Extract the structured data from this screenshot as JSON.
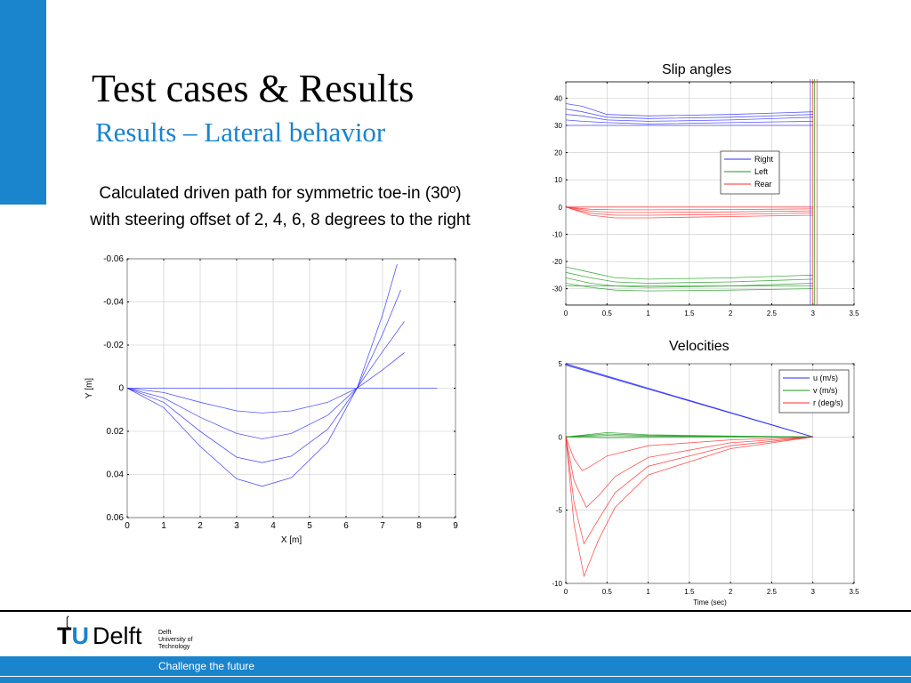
{
  "slide": {
    "title": "Test cases & Results",
    "subtitle": "Results – Lateral behavior",
    "caption_line1": "Calculated driven path for symmetric toe-in (30º)",
    "caption_line2": "with steering offset of 2, 4, 6, 8 degrees to the right"
  },
  "colors": {
    "brand_blue": "#1a84cc",
    "series_blue": "#2a2aff",
    "series_green": "#1a9a1a",
    "series_red": "#ff2a2a"
  },
  "footer": {
    "logo_tu": "TU",
    "logo_u": "U",
    "logo_t": "T",
    "logo_delft": "Delft",
    "logo_small_line1": "Delft",
    "logo_small_line2": "University of",
    "logo_small_line3": "Technology",
    "tagline": "Challenge the future",
    "logo_icon": "flame-icon"
  },
  "chart_data": [
    {
      "id": "path",
      "type": "line",
      "title": "",
      "xlabel": "X [m]",
      "ylabel": "Y [m]",
      "xlim": [
        0,
        9
      ],
      "ylim": [
        -0.06,
        0.06
      ],
      "y_reversed": true,
      "grid": true,
      "x_ticks": [
        "0",
        "1",
        "2",
        "3",
        "4",
        "5",
        "6",
        "7",
        "8",
        "9"
      ],
      "y_ticks": [
        "-0.06",
        "-0.04",
        "-0.02",
        "0",
        "0.02",
        "0.04",
        "0.06"
      ],
      "series": [
        {
          "color": "#2a2aff",
          "x": [
            0,
            0.5,
            1,
            1.5,
            2,
            2.5,
            3,
            3.5,
            4,
            4.5,
            5,
            5.5,
            6,
            6.5,
            7,
            7.5,
            8,
            8.5
          ],
          "y": [
            0,
            0,
            0,
            0,
            0,
            0,
            0,
            0,
            0,
            0,
            0,
            0,
            0,
            0,
            0,
            0,
            0,
            0
          ]
        },
        {
          "color": "#2a2aff",
          "x": [
            0,
            1,
            2,
            3,
            3.7,
            4.5,
            5.5,
            6.3,
            7,
            7.6
          ],
          "y": [
            0,
            0.002,
            0.0065,
            0.0105,
            0.0115,
            0.0105,
            0.0065,
            0,
            -0.0085,
            -0.0165
          ]
        },
        {
          "color": "#2a2aff",
          "x": [
            0,
            1,
            2,
            3,
            3.7,
            4.5,
            5.5,
            6.3,
            7,
            7.6
          ],
          "y": [
            0,
            0.0045,
            0.0135,
            0.021,
            0.0235,
            0.021,
            0.0125,
            0,
            -0.017,
            -0.031
          ]
        },
        {
          "color": "#2a2aff",
          "x": [
            0,
            1,
            2,
            3,
            3.7,
            4.5,
            5.5,
            6.3,
            7,
            7.5
          ],
          "y": [
            0,
            0.0065,
            0.02,
            0.032,
            0.0345,
            0.0315,
            0.019,
            0,
            -0.025,
            -0.0455
          ]
        },
        {
          "color": "#2a2aff",
          "x": [
            0,
            1,
            2,
            3,
            3.7,
            4.5,
            5.5,
            6.3,
            7,
            7.4
          ],
          "y": [
            0,
            0.009,
            0.027,
            0.042,
            0.0455,
            0.0415,
            0.025,
            0,
            -0.034,
            -0.0575
          ]
        }
      ]
    },
    {
      "id": "slip",
      "type": "line",
      "title": "Slip angles",
      "xlabel": "",
      "ylabel": "",
      "xlim": [
        0,
        3.5
      ],
      "ylim": [
        -36,
        46
      ],
      "grid": true,
      "legend": "top-right",
      "x_ticks": [
        "0",
        "0.5",
        "1",
        "1.5",
        "2",
        "2.5",
        "3",
        "3.5"
      ],
      "y_ticks": [
        "40",
        "30",
        "20",
        "10",
        "0",
        "-10",
        "-20",
        "-30"
      ],
      "series": [
        {
          "name": "Right",
          "color": "#2a2aff",
          "x": [
            0,
            3
          ],
          "y": [
            30,
            30
          ]
        },
        {
          "name": "Left",
          "color": "#1a9a1a",
          "x": [
            0,
            3
          ],
          "y": [
            -29,
            -29
          ]
        },
        {
          "name": "Rear",
          "color": "#ff2a2a",
          "x": [
            0,
            3
          ],
          "y": [
            0,
            0
          ]
        },
        {
          "color": "#2a2aff",
          "x": [
            0,
            0.2,
            0.5,
            1,
            2,
            3
          ],
          "y": [
            38,
            37,
            34,
            33.5,
            34,
            35
          ]
        },
        {
          "color": "#2a2aff",
          "x": [
            0,
            0.2,
            0.5,
            1,
            2,
            3
          ],
          "y": [
            36,
            35,
            33,
            32.5,
            33,
            34
          ]
        },
        {
          "color": "#2a2aff",
          "x": [
            0,
            0.2,
            0.5,
            1,
            2,
            3
          ],
          "y": [
            34,
            33.5,
            32,
            31.5,
            32,
            33
          ]
        },
        {
          "color": "#2a2aff",
          "x": [
            0,
            0.2,
            0.5,
            1,
            2,
            3
          ],
          "y": [
            32,
            31.5,
            31,
            30.5,
            31,
            31.5
          ]
        },
        {
          "color": "#1a9a1a",
          "x": [
            0,
            0.3,
            0.6,
            1,
            2,
            3
          ],
          "y": [
            -22,
            -24,
            -26,
            -26.5,
            -26,
            -25
          ]
        },
        {
          "color": "#1a9a1a",
          "x": [
            0,
            0.3,
            0.6,
            1,
            2,
            3
          ],
          "y": [
            -24,
            -26,
            -27.5,
            -28,
            -27.5,
            -26.5
          ]
        },
        {
          "color": "#1a9a1a",
          "x": [
            0,
            0.3,
            0.6,
            1,
            2,
            3
          ],
          "y": [
            -26,
            -28,
            -29,
            -29.5,
            -29,
            -28
          ]
        },
        {
          "color": "#1a9a1a",
          "x": [
            0,
            0.3,
            0.6,
            1,
            2,
            3
          ],
          "y": [
            -28,
            -29.5,
            -30.5,
            -30.8,
            -30.5,
            -30
          ]
        },
        {
          "color": "#ff2a2a",
          "x": [
            0,
            0.1,
            0.3,
            0.6,
            1,
            2,
            3
          ],
          "y": [
            0,
            -1,
            -3,
            -4,
            -4,
            -3.5,
            -3
          ]
        },
        {
          "color": "#ff2a2a",
          "x": [
            0,
            0.1,
            0.3,
            0.6,
            1,
            2,
            3
          ],
          "y": [
            0,
            -0.8,
            -2.3,
            -3,
            -3,
            -2.7,
            -2.2
          ]
        },
        {
          "color": "#ff2a2a",
          "x": [
            0,
            0.1,
            0.3,
            0.6,
            1,
            2,
            3
          ],
          "y": [
            0,
            -0.5,
            -1.5,
            -2,
            -2,
            -1.8,
            -1.4
          ]
        },
        {
          "color": "#ff2a2a",
          "x": [
            0,
            0.1,
            0.3,
            0.6,
            1,
            2,
            3
          ],
          "y": [
            0,
            -0.3,
            -0.8,
            -1,
            -1,
            -0.9,
            -0.7
          ]
        },
        {
          "color": "#ff2a2a",
          "x": [
            3,
            3
          ],
          "y": [
            47,
            -36
          ]
        },
        {
          "color": "#2a2aff",
          "x": [
            2.97,
            2.97
          ],
          "y": [
            47,
            -36
          ]
        },
        {
          "color": "#1a9a1a",
          "x": [
            3.02,
            3.02
          ],
          "y": [
            47,
            -36
          ]
        },
        {
          "color": "#ff2a2a",
          "x": [
            3.05,
            3.05
          ],
          "y": [
            47,
            -36
          ]
        }
      ]
    },
    {
      "id": "vel",
      "type": "line",
      "title": "Velocities",
      "xlabel": "Time (sec)",
      "ylabel": "",
      "xlim": [
        0,
        3.5
      ],
      "ylim": [
        -10,
        5
      ],
      "grid": true,
      "legend": "top-right",
      "x_ticks": [
        "0",
        "0.5",
        "1",
        "1.5",
        "2",
        "2.5",
        "3",
        "3.5"
      ],
      "y_ticks": [
        "5",
        "0",
        "-5",
        "-10"
      ],
      "series": [
        {
          "name": "u (m/s)",
          "color": "#2a2aff",
          "x": [
            0,
            3
          ],
          "y": [
            5,
            0
          ]
        },
        {
          "name": "v (m/s)",
          "color": "#1a9a1a",
          "x": [
            0,
            0.5,
            1,
            2,
            3
          ],
          "y": [
            0,
            0.1,
            0.05,
            0.02,
            0
          ]
        },
        {
          "name": "r (deg/s)",
          "color": "#ff2a2a",
          "x": [
            0,
            0.1,
            0.2,
            0.3,
            0.5,
            1,
            2,
            3
          ],
          "y": [
            0,
            -1.5,
            -2.3,
            -2,
            -1.3,
            -0.6,
            -0.2,
            0
          ]
        },
        {
          "color": "#2a2aff",
          "x": [
            0,
            3
          ],
          "y": [
            4.9,
            0
          ]
        },
        {
          "color": "#2a2aff",
          "x": [
            0,
            3
          ],
          "y": [
            4.95,
            0
          ]
        },
        {
          "color": "#1a9a1a",
          "x": [
            0,
            0.5,
            1,
            2,
            3
          ],
          "y": [
            0,
            0.2,
            0.1,
            0.04,
            0
          ]
        },
        {
          "color": "#1a9a1a",
          "x": [
            0,
            0.5,
            1,
            2,
            3
          ],
          "y": [
            0,
            0.3,
            0.15,
            0.06,
            0
          ]
        },
        {
          "color": "#1a9a1a",
          "x": [
            0,
            0.5,
            1,
            2,
            3
          ],
          "y": [
            0,
            -0.05,
            -0.03,
            0,
            0
          ]
        },
        {
          "color": "#ff2a2a",
          "x": [
            0,
            0.1,
            0.25,
            0.4,
            0.6,
            1,
            2,
            3
          ],
          "y": [
            0,
            -3,
            -4.8,
            -4,
            -2.7,
            -1.4,
            -0.4,
            0
          ]
        },
        {
          "color": "#ff2a2a",
          "x": [
            0,
            0.1,
            0.22,
            0.4,
            0.6,
            1,
            2,
            3
          ],
          "y": [
            0,
            -4.5,
            -7.3,
            -5.6,
            -3.8,
            -2,
            -0.6,
            0
          ]
        },
        {
          "color": "#ff2a2a",
          "x": [
            0,
            0.1,
            0.22,
            0.4,
            0.6,
            1,
            2,
            3
          ],
          "y": [
            0,
            -6,
            -9.5,
            -7,
            -4.8,
            -2.6,
            -0.8,
            0
          ]
        }
      ]
    }
  ]
}
